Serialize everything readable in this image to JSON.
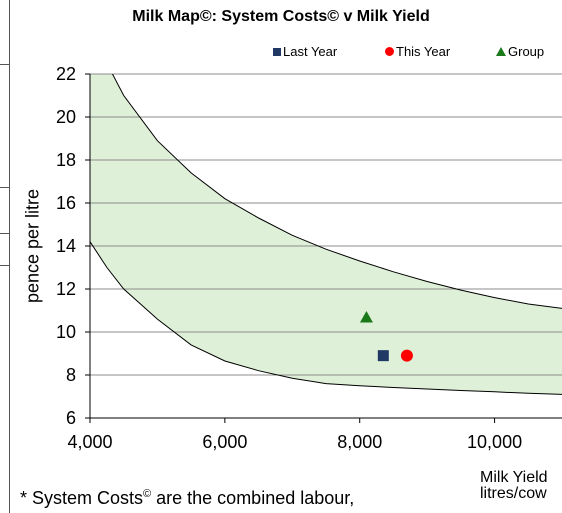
{
  "chart_data": {
    "type": "scatter",
    "title": "Milk Map©: System Costs© v Milk Yield",
    "ylabel": "pence per litre",
    "xlabel_line1": "Milk Yield",
    "xlabel_line2": "litres/cow",
    "xlim": [
      4000,
      11000
    ],
    "ylim": [
      6,
      22
    ],
    "x_ticks": [
      4000,
      6000,
      8000,
      10000
    ],
    "x_tick_labels": [
      "4,000",
      "6,000",
      "8,000",
      "10,000"
    ],
    "y_ticks": [
      6,
      8,
      10,
      12,
      14,
      16,
      18,
      20,
      22
    ],
    "y_tick_labels": [
      "6",
      "8",
      "10",
      "12",
      "14",
      "16",
      "18",
      "20",
      "22"
    ],
    "grid": "horizontal",
    "legend_position": "top-right",
    "band": {
      "upper": [
        [
          4000,
          24.0
        ],
        [
          4500,
          21.0
        ],
        [
          5000,
          18.9
        ],
        [
          5500,
          17.4
        ],
        [
          6000,
          16.2
        ],
        [
          6500,
          15.3
        ],
        [
          7000,
          14.5
        ],
        [
          7500,
          13.85
        ],
        [
          8000,
          13.3
        ],
        [
          8500,
          12.8
        ],
        [
          9000,
          12.35
        ],
        [
          9500,
          11.95
        ],
        [
          10000,
          11.6
        ],
        [
          10500,
          11.3
        ],
        [
          11000,
          11.1
        ]
      ],
      "lower": [
        [
          4000,
          14.2
        ],
        [
          4250,
          13.0
        ],
        [
          4500,
          12.0
        ],
        [
          5000,
          10.6
        ],
        [
          5500,
          9.4
        ],
        [
          6000,
          8.65
        ],
        [
          6500,
          8.2
        ],
        [
          7000,
          7.85
        ],
        [
          7500,
          7.6
        ],
        [
          8000,
          7.5
        ],
        [
          8500,
          7.42
        ],
        [
          9000,
          7.35
        ],
        [
          9500,
          7.28
        ],
        [
          10000,
          7.22
        ],
        [
          10500,
          7.15
        ],
        [
          11000,
          7.1
        ]
      ],
      "fill": "#dff0d8",
      "stroke": "#000000"
    },
    "series": [
      {
        "name": "Last Year",
        "marker": "square",
        "color": "#1f3864",
        "x": 8350,
        "y": 8.9
      },
      {
        "name": "This Year",
        "marker": "circle",
        "color": "#ff0000",
        "x": 8700,
        "y": 8.9
      },
      {
        "name": "Group",
        "marker": "triangle",
        "color": "#1a7a1a",
        "x": 8100,
        "y": 10.7
      }
    ]
  },
  "footnote": {
    "prefix": "* System Costs",
    "sup": "©",
    "suffix": " are the combined labour,"
  }
}
